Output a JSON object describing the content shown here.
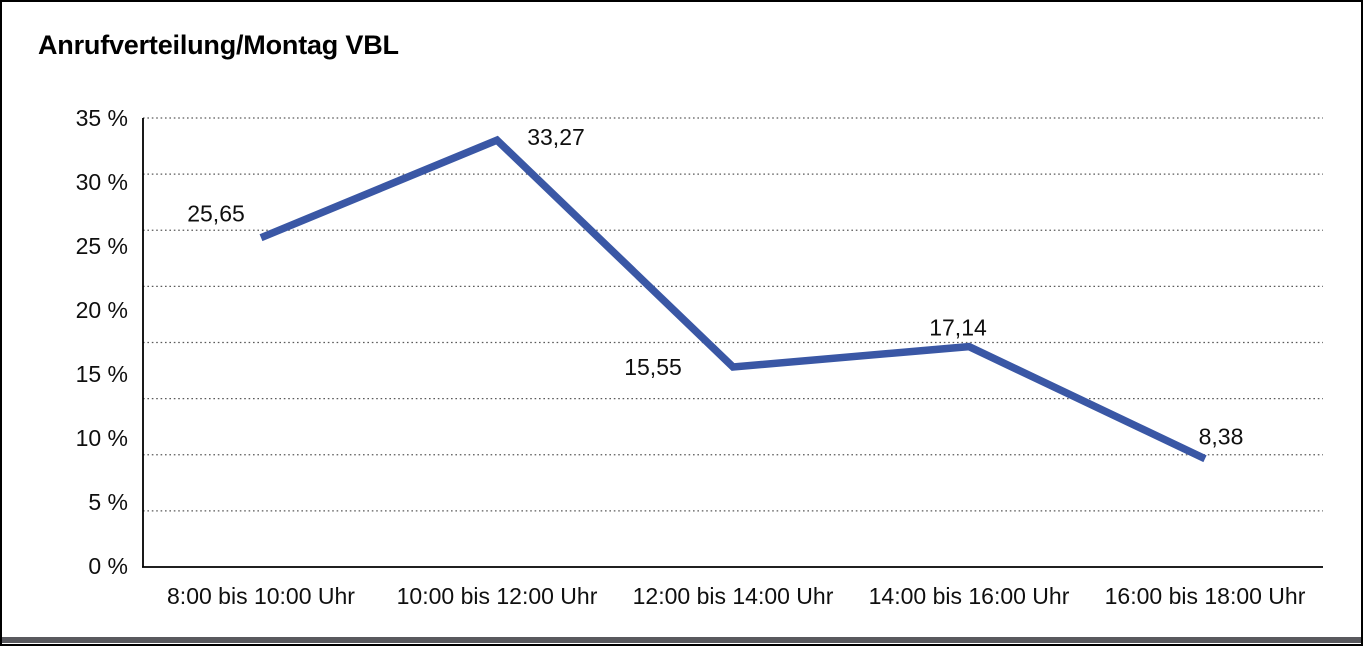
{
  "title": "Anrufverteilung/Montag VBL",
  "chart_data": {
    "type": "line",
    "title": "Anrufverteilung/Montag VBL",
    "categories": [
      "8:00 bis 10:00 Uhr",
      "10:00 bis 12:00 Uhr",
      "12:00 bis 14:00 Uhr",
      "14:00 bis 16:00 Uhr",
      "16:00 bis 18:00 Uhr"
    ],
    "values": [
      25.65,
      33.27,
      15.55,
      17.14,
      8.38
    ],
    "data_labels": [
      "25,65",
      "33,27",
      "15,55",
      "17,14",
      "8,38"
    ],
    "xlabel": "",
    "ylabel": "",
    "ylim": [
      0,
      35
    ],
    "y_ticks": [
      {
        "value": 35,
        "label": "35 %"
      },
      {
        "value": 30,
        "label": "30 %"
      },
      {
        "value": 25,
        "label": "25 %"
      },
      {
        "value": 20,
        "label": "20 %"
      },
      {
        "value": 15,
        "label": "15 %"
      },
      {
        "value": 10,
        "label": "10 %"
      },
      {
        "value": 5,
        "label": "5 %"
      },
      {
        "value": 0,
        "label": "0 %"
      }
    ],
    "grid": "horizontal-dotted",
    "legend": "none",
    "line_color": "#3A57A5",
    "axis_color": "#000000",
    "text_color": "#111111"
  }
}
